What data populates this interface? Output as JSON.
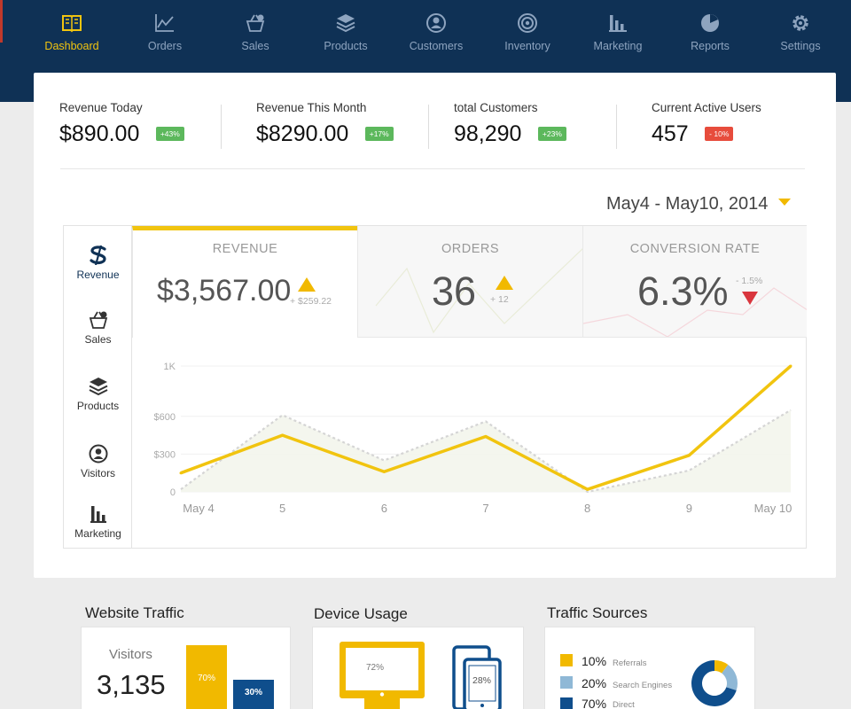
{
  "nav": {
    "items": [
      {
        "label": "Dashboard",
        "icon": "book-icon",
        "active": true
      },
      {
        "label": "Orders",
        "icon": "line-chart-icon"
      },
      {
        "label": "Sales",
        "icon": "basket-icon"
      },
      {
        "label": "Products",
        "icon": "layers-icon"
      },
      {
        "label": "Customers",
        "icon": "user-circle-icon"
      },
      {
        "label": "Inventory",
        "icon": "target-icon"
      },
      {
        "label": "Marketing",
        "icon": "bar-chart-icon"
      },
      {
        "label": "Reports",
        "icon": "pie-icon"
      },
      {
        "label": "Settings",
        "icon": "gear-icon"
      }
    ]
  },
  "stats": [
    {
      "title": "Revenue Today",
      "value": "$890.00",
      "badge": "+43%",
      "trend": "up"
    },
    {
      "title": "Revenue This Month",
      "value": "$8290.00",
      "badge": "+17%",
      "trend": "up"
    },
    {
      "title": "total Customers",
      "value": "98,290",
      "badge": "+23%",
      "trend": "up"
    },
    {
      "title": "Current Active Users",
      "value": "457",
      "badge": "- 10%",
      "trend": "down"
    }
  ],
  "date_range": "May4 - May10, 2014",
  "side_menu": [
    {
      "label": "Revenue",
      "icon": "dollar-icon",
      "active": true
    },
    {
      "label": "Sales",
      "icon": "basket-icon"
    },
    {
      "label": "Products",
      "icon": "layers-icon"
    },
    {
      "label": "Visitors",
      "icon": "user-circle-icon"
    },
    {
      "label": "Marketing",
      "icon": "bar-chart-icon"
    }
  ],
  "tabs": [
    {
      "name": "REVENUE",
      "value": "$3,567.00",
      "delta": "+ $259.22",
      "trend": "up"
    },
    {
      "name": "ORDERS",
      "value": "36",
      "delta": "+ 12",
      "trend": "up"
    },
    {
      "name": "CONVERSION RATE",
      "value": "6.3%",
      "delta": "- 1.5%",
      "trend": "down"
    }
  ],
  "chart_data": {
    "type": "line",
    "categories": [
      "May 4",
      "5",
      "6",
      "7",
      "8",
      "9",
      "May 10"
    ],
    "series": [
      {
        "values": [
          150,
          450,
          160,
          440,
          20,
          290,
          1000
        ],
        "color": "#f1c40f"
      },
      {
        "values": [
          20,
          610,
          250,
          560,
          0,
          170,
          650
        ],
        "color": "#d5d5d5",
        "dashed": true
      }
    ],
    "yticks": [
      "0",
      "$300",
      "$600",
      "1K"
    ],
    "ytick_values": [
      0,
      300,
      600,
      1000
    ],
    "ylim": [
      0,
      1000
    ],
    "grid": true
  },
  "widgets": {
    "traffic": {
      "title": "Website Traffic",
      "label": "Visitors",
      "value": "3,135",
      "bar1": "70%",
      "bar2": "30%",
      "bar1_fraction": 0.7,
      "bar2_fraction": 0.3
    },
    "device": {
      "title": "Device Usage",
      "desktop": "72%",
      "tablet": "28%"
    },
    "sources": {
      "title": "Traffic Sources",
      "items": [
        {
          "pct": "10%",
          "label": "Referrals",
          "color": "#f1b900",
          "value": 10
        },
        {
          "pct": "20%",
          "label": "Search Engines",
          "color": "#8fb8d6",
          "value": 20
        },
        {
          "pct": "70%",
          "label": "Direct",
          "color": "#0f4e8c",
          "value": 70
        }
      ]
    }
  }
}
